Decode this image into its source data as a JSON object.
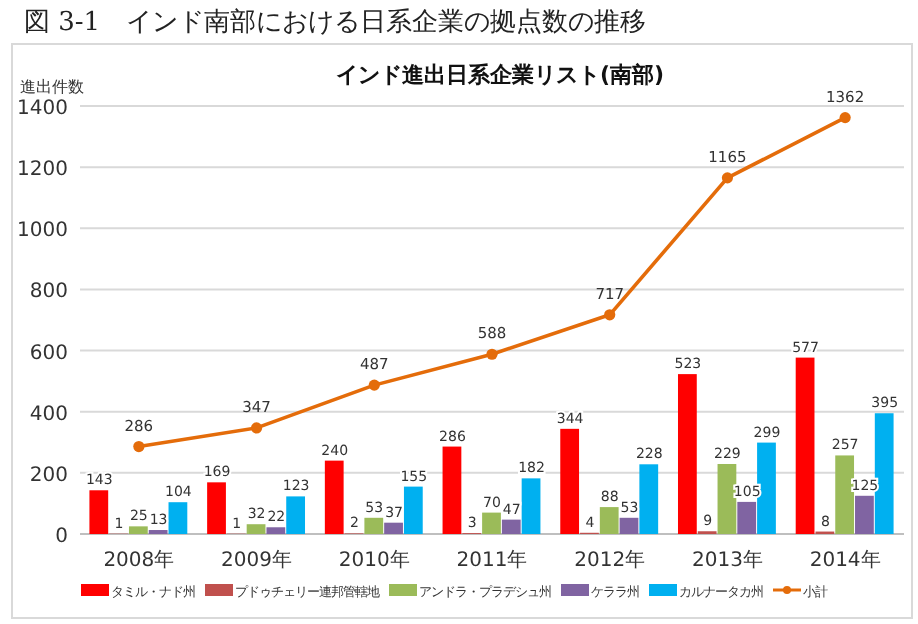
{
  "chart_data": {
    "type": "bar",
    "title": "図 3-1　インド南部における日系企業の拠点数の推移",
    "subtitle": "インド進出日系企業リスト(南部)",
    "ylabel": "進出件数",
    "categories": [
      "2008年",
      "2009年",
      "2010年",
      "2011年",
      "2012年",
      "2013年",
      "2014年"
    ],
    "series": [
      {
        "name": "タミル・ナド州",
        "color": "#ff0000",
        "values": [
          143,
          169,
          240,
          286,
          344,
          523,
          577
        ]
      },
      {
        "name": "プドゥチェリー連邦管轄地",
        "color": "#c0504d",
        "values": [
          1,
          1,
          2,
          3,
          4,
          9,
          8
        ]
      },
      {
        "name": "アンドラ・プラデシュ州",
        "color": "#9bbb59",
        "values": [
          25,
          32,
          53,
          70,
          88,
          229,
          257
        ]
      },
      {
        "name": "ケララ州",
        "color": "#8064a2",
        "values": [
          13,
          22,
          37,
          47,
          53,
          105,
          125
        ]
      },
      {
        "name": "カルナータカ州",
        "color": "#00b0f0",
        "values": [
          104,
          123,
          155,
          182,
          228,
          299,
          395
        ]
      },
      {
        "name": "小計",
        "type": "line",
        "color": "#e46c0a",
        "marker": "circle",
        "values": [
          286,
          347,
          487,
          588,
          717,
          1165,
          1362
        ]
      }
    ],
    "ylim": [
      0,
      1400
    ],
    "yticks": [
      0,
      200,
      400,
      600,
      800,
      1000,
      1200,
      1400
    ],
    "grid": "y",
    "legend": "bottom",
    "data_labels": true
  }
}
